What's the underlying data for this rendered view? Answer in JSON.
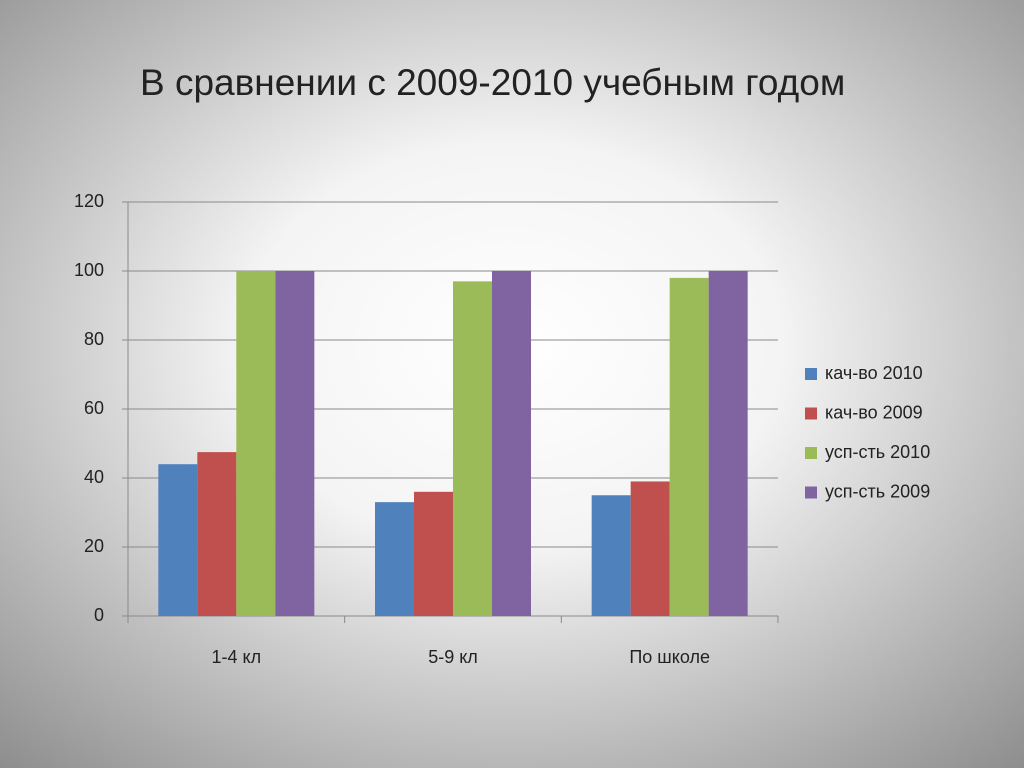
{
  "chart_data": {
    "type": "bar",
    "title": "В сравнении с 2009-2010 учебным годом",
    "categories": [
      "1-4 кл",
      "5-9 кл",
      "По школе"
    ],
    "series": [
      {
        "name": "кач-во 2010",
        "color": "#4f81bd",
        "values": [
          44,
          33,
          35
        ]
      },
      {
        "name": "кач-во 2009",
        "color": "#c0504d",
        "values": [
          47.5,
          36,
          39
        ]
      },
      {
        "name": "усп-сть 2010",
        "color": "#9bbb59",
        "values": [
          100,
          97,
          98
        ]
      },
      {
        "name": "усп-сть 2009",
        "color": "#8064a2",
        "values": [
          100,
          100,
          100
        ]
      }
    ],
    "ylim": [
      0,
      120
    ],
    "yticks": [
      0,
      20,
      40,
      60,
      80,
      100,
      120
    ],
    "grid": true,
    "legend": "right"
  }
}
